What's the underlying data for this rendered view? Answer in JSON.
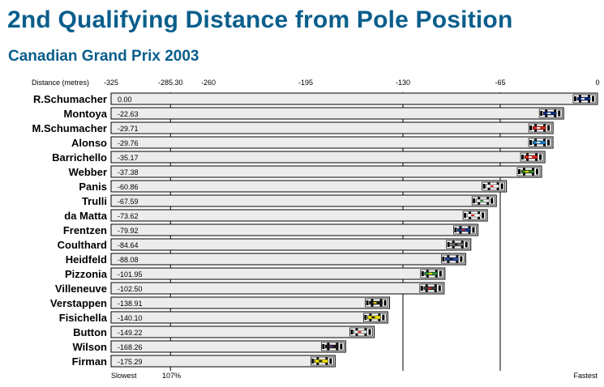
{
  "title": "2nd Qualifying Distance from Pole Position",
  "subtitle": "Canadian Grand Prix 2003",
  "chart_data": {
    "type": "bar",
    "orientation": "horizontal",
    "axis_title": "Distance (metres)",
    "xlim": [
      -325,
      0
    ],
    "ticks": [
      -325,
      -260,
      -195,
      -130,
      -65,
      0
    ],
    "tick_labels": [
      "-325",
      "-260",
      "-195",
      "-130",
      "-65",
      "0"
    ],
    "extra_tick": {
      "value": -285.3,
      "label": "-285.30"
    },
    "reference_lines": [
      -130,
      -65,
      -285.3
    ],
    "bottom_labels": {
      "left": "Slowest",
      "ref": "107%",
      "right": "Fastest"
    },
    "categories": [
      "R.Schumacher",
      "Montoya",
      "M.Schumacher",
      "Alonso",
      "Barrichello",
      "Webber",
      "Panis",
      "Trulli",
      "da Matta",
      "Frentzen",
      "Coulthard",
      "Heidfeld",
      "Pizzonia",
      "Villeneuve",
      "Verstappen",
      "Fisichella",
      "Button",
      "Wilson",
      "Firman"
    ],
    "values": [
      0.0,
      -22.63,
      -29.71,
      -29.76,
      -35.17,
      -37.38,
      -60.86,
      -67.59,
      -73.62,
      -79.92,
      -84.64,
      -88.08,
      -101.95,
      -102.5,
      -138.91,
      -140.1,
      -149.22,
      -168.26,
      -175.29
    ],
    "value_labels": [
      "0.00",
      "-22.63",
      "-29.71",
      "-29.76",
      "-35.17",
      "-37.38",
      "-60.86",
      "-67.59",
      "-73.62",
      "-79.92",
      "-84.64",
      "-88.08",
      "-101.95",
      "-102.50",
      "-138.91",
      "-140.10",
      "-149.22",
      "-168.26",
      "-175.29"
    ],
    "car_colors": [
      "#0d2a7a",
      "#0d2a7a",
      "#d8261c",
      "#1e7fc4",
      "#d8261c",
      "#3a7a1e",
      "#ffffff",
      "#e8e8e8",
      "#ffffff",
      "#1c3d8c",
      "#6e6e6e",
      "#2a4aa0",
      "#2e8a3c",
      "#3a3a3a",
      "#1a1a1a",
      "#f2e400",
      "#e8e8e8",
      "#1a1a1a",
      "#f2e400"
    ],
    "car_accents": [
      "#ffffff",
      "#ffffff",
      "#ffffff",
      "#ffffff",
      "#ffffff",
      "#f2d000",
      "#d8261c",
      "#2e8a3c",
      "#d8261c",
      "#d8261c",
      "#1a1a1a",
      "#1a1a1a",
      "#f2d000",
      "#d8261c",
      "#f2d000",
      "#1a1a1a",
      "#d8261c",
      "#6a3a8a",
      "#1a1a1a"
    ],
    "bar_fill": "#ececec",
    "grid": false,
    "legend": "none"
  }
}
